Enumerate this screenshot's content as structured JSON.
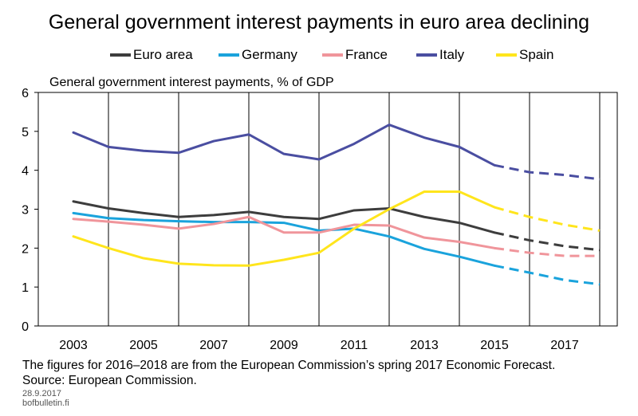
{
  "chart_data": {
    "type": "line",
    "title": "General government interest payments in euro area declining",
    "ylabel": "General government interest payments, % of GDP",
    "xlabel": "",
    "ylim": [
      0,
      6
    ],
    "yticks": [
      0,
      1,
      2,
      3,
      4,
      5,
      6
    ],
    "x": [
      2003,
      2004,
      2005,
      2006,
      2007,
      2008,
      2009,
      2010,
      2011,
      2012,
      2013,
      2014,
      2015,
      2016,
      2017,
      2018
    ],
    "xtick_labels": [
      "2003",
      "2005",
      "2007",
      "2009",
      "2011",
      "2013",
      "2015",
      "2017"
    ],
    "forecast_from": 2015,
    "grid": "vertical",
    "legend_position": "top",
    "series": [
      {
        "name": "Euro area",
        "color": "#3d3d3d",
        "values": [
          3.2,
          3.02,
          2.9,
          2.8,
          2.85,
          2.93,
          2.8,
          2.75,
          2.97,
          3.02,
          2.8,
          2.65,
          2.4,
          2.2,
          2.05,
          1.95
        ]
      },
      {
        "name": "Germany",
        "color": "#1aa3dc",
        "values": [
          2.9,
          2.77,
          2.72,
          2.69,
          2.67,
          2.67,
          2.65,
          2.45,
          2.5,
          2.3,
          1.98,
          1.78,
          1.55,
          1.37,
          1.18,
          1.07
        ]
      },
      {
        "name": "France",
        "color": "#f0959b",
        "values": [
          2.75,
          2.68,
          2.6,
          2.5,
          2.62,
          2.8,
          2.4,
          2.4,
          2.6,
          2.58,
          2.27,
          2.16,
          2.0,
          1.88,
          1.8,
          1.8
        ]
      },
      {
        "name": "Italy",
        "color": "#4a4ea1",
        "values": [
          4.97,
          4.6,
          4.5,
          4.45,
          4.75,
          4.92,
          4.42,
          4.28,
          4.68,
          5.17,
          4.84,
          4.6,
          4.13,
          3.95,
          3.88,
          3.77
        ]
      },
      {
        "name": "Spain",
        "color": "#ffe51c",
        "values": [
          2.3,
          2.0,
          1.74,
          1.6,
          1.56,
          1.55,
          1.7,
          1.88,
          2.5,
          3.0,
          3.45,
          3.45,
          3.05,
          2.8,
          2.6,
          2.45
        ]
      }
    ]
  },
  "footnote": {
    "line1": "The figures for 2016–2018 are from the European Commission’s spring 2017 Economic Forecast.",
    "line2": "Source: European Commission."
  },
  "meta": {
    "date": "28.9.2017",
    "site": "bofbulletin.fi"
  }
}
